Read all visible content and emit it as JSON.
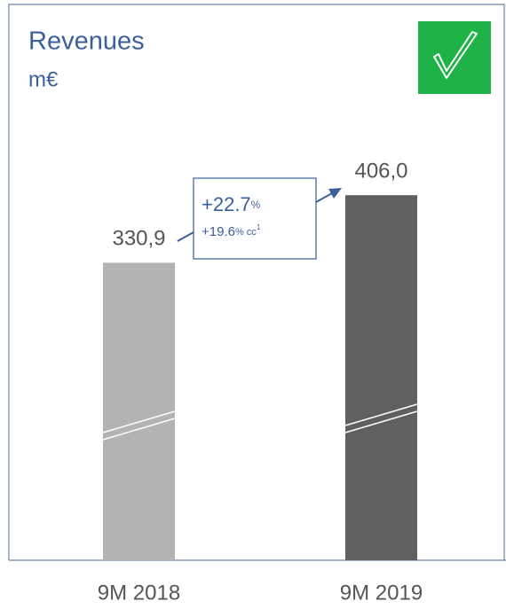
{
  "chart_data": {
    "type": "bar",
    "title": "Revenues",
    "subtitle": "m€",
    "categories": [
      "9M 2018",
      "9M 2019"
    ],
    "values": [
      330.9,
      406.0
    ],
    "value_labels": [
      "330,9",
      "406,0"
    ],
    "colors": [
      "#b3b3b3",
      "#606060"
    ],
    "ylim": [
      0,
      420
    ],
    "annotation": {
      "lines": [
        {
          "main": "+22.7",
          "suffix": "%"
        },
        {
          "main": "+19.6",
          "suffix": "% cc",
          "sup": "1"
        }
      ]
    }
  }
}
